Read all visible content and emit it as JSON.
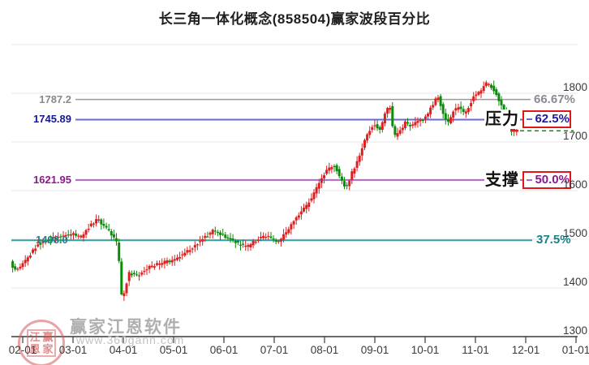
{
  "chart_data": {
    "type": "candlestick",
    "title": "长三角一体化概念(858504)赢家波段百分比",
    "x_labels": [
      "02-01",
      "03-01",
      "04-01",
      "05-01",
      "06-01",
      "07-01",
      "08-01",
      "09-01",
      "10-01",
      "11-01",
      "12-01",
      "01-01"
    ],
    "y_ticks": [
      1800,
      1700,
      1600,
      1500,
      1400,
      1300
    ],
    "y_axis_range": [
      1300,
      1900
    ],
    "grid": true,
    "colors": {
      "up_candle": "#dc2020",
      "down_candle": "#0c8c0c",
      "grid": "#e7e7e7",
      "axis": "#3c3c3c",
      "last_price_dash": "#0e8f0e",
      "last_price_tick": "#e12222",
      "box_border": "#e11717"
    },
    "levels": [
      {
        "label": "1787.2",
        "price": 1787.2,
        "pct": "66.67%",
        "name": "",
        "style": "plain",
        "line_color": "#9a9a9a",
        "label_color": "#8a8a8a",
        "pct_color": "#8a8a93"
      },
      {
        "label": "1745.89",
        "price": 1745.89,
        "pct": "62.5%",
        "name": "压力",
        "style": "boxed",
        "line_color": "#6a6ad0",
        "label_color": "#18188f",
        "pct_color": "#1c1c9e"
      },
      {
        "label": "1621.95",
        "price": 1621.95,
        "pct": "50.0%",
        "name": "支撑",
        "style": "boxed",
        "line_color": "#b565c8",
        "label_color": "#8f188f",
        "pct_color": "#8b1a8b"
      },
      {
        "label": "1498.0",
        "price": 1498.0,
        "pct": "37.5%",
        "name": "",
        "style": "inline",
        "line_color": "#3a9ea5",
        "label_color": "#1f8089",
        "pct_color": "#1b7f86"
      }
    ],
    "last_price": 1723,
    "candle_count": 200,
    "price_path": [
      [
        0.0,
        1452
      ],
      [
        0.008,
        1436
      ],
      [
        0.02,
        1446
      ],
      [
        0.05,
        1490
      ],
      [
        0.08,
        1504
      ],
      [
        0.109,
        1512
      ],
      [
        0.125,
        1504
      ],
      [
        0.14,
        1526
      ],
      [
        0.155,
        1542
      ],
      [
        0.165,
        1528
      ],
      [
        0.178,
        1512
      ],
      [
        0.188,
        1498
      ],
      [
        0.1935,
        1450
      ],
      [
        0.198,
        1374
      ],
      [
        0.203,
        1396
      ],
      [
        0.21,
        1430
      ],
      [
        0.225,
        1426
      ],
      [
        0.245,
        1442
      ],
      [
        0.27,
        1452
      ],
      [
        0.287,
        1456
      ],
      [
        0.305,
        1468
      ],
      [
        0.33,
        1490
      ],
      [
        0.345,
        1504
      ],
      [
        0.36,
        1518
      ],
      [
        0.375,
        1508
      ],
      [
        0.39,
        1500
      ],
      [
        0.405,
        1490
      ],
      [
        0.42,
        1484
      ],
      [
        0.435,
        1498
      ],
      [
        0.45,
        1506
      ],
      [
        0.466,
        1502
      ],
      [
        0.475,
        1494
      ],
      [
        0.49,
        1516
      ],
      [
        0.505,
        1540
      ],
      [
        0.52,
        1562
      ],
      [
        0.535,
        1586
      ],
      [
        0.545,
        1610
      ],
      [
        0.555,
        1632
      ],
      [
        0.565,
        1646
      ],
      [
        0.575,
        1652
      ],
      [
        0.585,
        1624
      ],
      [
        0.595,
        1604
      ],
      [
        0.605,
        1636
      ],
      [
        0.615,
        1660
      ],
      [
        0.625,
        1694
      ],
      [
        0.635,
        1720
      ],
      [
        0.645,
        1738
      ],
      [
        0.655,
        1724
      ],
      [
        0.665,
        1760
      ],
      [
        0.672,
        1778
      ],
      [
        0.68,
        1712
      ],
      [
        0.69,
        1722
      ],
      [
        0.7,
        1740
      ],
      [
        0.71,
        1734
      ],
      [
        0.72,
        1742
      ],
      [
        0.733,
        1748
      ],
      [
        0.742,
        1762
      ],
      [
        0.752,
        1786
      ],
      [
        0.758,
        1794
      ],
      [
        0.768,
        1752
      ],
      [
        0.775,
        1738
      ],
      [
        0.785,
        1762
      ],
      [
        0.795,
        1772
      ],
      [
        0.805,
        1756
      ],
      [
        0.815,
        1780
      ],
      [
        0.822,
        1794
      ],
      [
        0.832,
        1804
      ],
      [
        0.845,
        1822
      ],
      [
        0.852,
        1814
      ],
      [
        0.862,
        1796
      ],
      [
        0.872,
        1770
      ],
      [
        0.882,
        1742
      ],
      [
        0.89,
        1720
      ],
      [
        0.897,
        1723
      ]
    ]
  },
  "watermark": {
    "brand": "赢家江恩软件",
    "url": "www.360gann.com",
    "seal_chars": [
      "江",
      "赢",
      "恩",
      "家"
    ]
  }
}
